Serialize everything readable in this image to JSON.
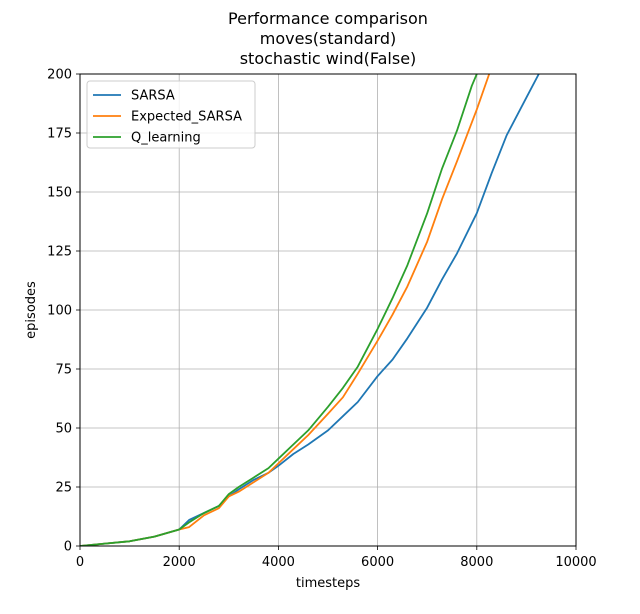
{
  "chart_data": {
    "type": "line",
    "title": [
      "Performance comparison",
      "moves(standard)",
      "stochastic wind(False)"
    ],
    "xlabel": "timesteps",
    "ylabel": "episodes",
    "xlim": [
      0,
      10000
    ],
    "ylim": [
      0,
      200
    ],
    "xticks": [
      0,
      2000,
      4000,
      6000,
      8000,
      10000
    ],
    "yticks": [
      0,
      25,
      50,
      75,
      100,
      125,
      150,
      175,
      200
    ],
    "grid": true,
    "legend_position": "top-left",
    "series": [
      {
        "name": "SARSA",
        "color": "#1f77b4",
        "x": [
          0,
          500,
          1000,
          1500,
          2000,
          2200,
          2500,
          2800,
          3000,
          3200,
          3500,
          3800,
          4000,
          4300,
          4600,
          5000,
          5300,
          5600,
          6000,
          6300,
          6600,
          7000,
          7300,
          7600,
          8000,
          8300,
          8600,
          9000,
          9250
        ],
        "y": [
          0,
          1,
          2,
          4,
          7,
          11,
          14,
          17,
          21,
          24,
          28,
          31,
          34,
          39,
          43,
          49,
          55,
          61,
          72,
          79,
          88,
          101,
          113,
          124,
          141,
          158,
          174,
          190,
          200
        ]
      },
      {
        "name": "Expected_SARSA",
        "color": "#ff7f0e",
        "x": [
          0,
          500,
          1000,
          1500,
          2000,
          2200,
          2500,
          2800,
          3000,
          3200,
          3500,
          3800,
          4000,
          4300,
          4600,
          5000,
          5300,
          5600,
          6000,
          6300,
          6600,
          7000,
          7300,
          7600,
          8000,
          8250
        ],
        "y": [
          0,
          1,
          2,
          4,
          7,
          8,
          13,
          16,
          21,
          23,
          27,
          31,
          35,
          41,
          47,
          56,
          63,
          73,
          87,
          98,
          110,
          129,
          147,
          163,
          185,
          200
        ]
      },
      {
        "name": "Q_learning",
        "color": "#2ca02c",
        "x": [
          0,
          500,
          1000,
          1500,
          2000,
          2200,
          2500,
          2800,
          3000,
          3200,
          3500,
          3800,
          4000,
          4300,
          4600,
          5000,
          5300,
          5600,
          6000,
          6300,
          6600,
          7000,
          7300,
          7600,
          7900,
          8000
        ],
        "y": [
          0,
          1,
          2,
          4,
          7,
          10,
          14,
          17,
          22,
          25,
          29,
          33,
          37,
          43,
          49,
          59,
          67,
          76,
          92,
          105,
          119,
          141,
          160,
          176,
          195,
          200
        ]
      }
    ]
  }
}
